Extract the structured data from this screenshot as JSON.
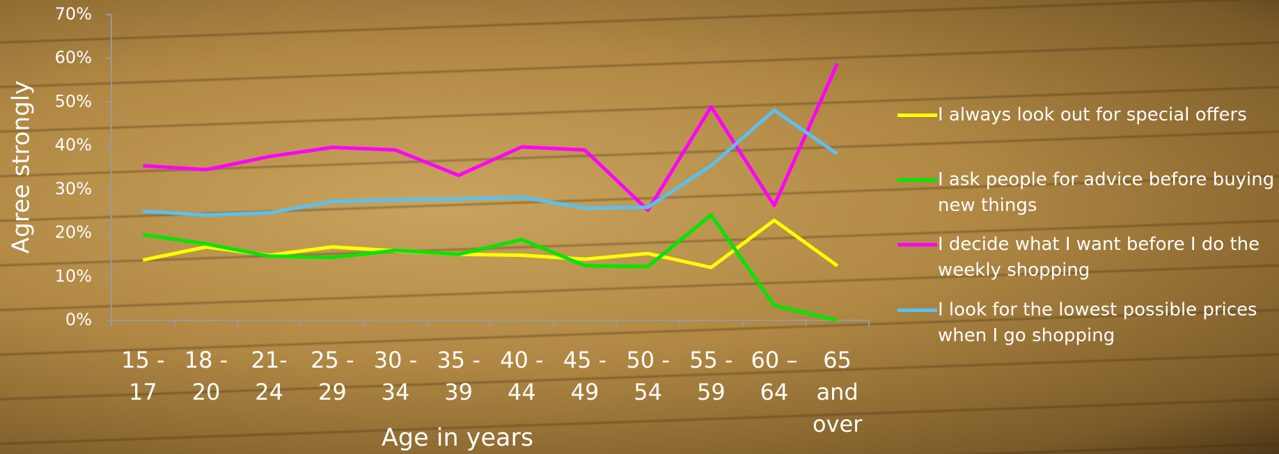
{
  "chart_data": {
    "type": "line",
    "x_label": "Age in years",
    "y_label": "Agree strongly",
    "categories": [
      [
        "15 -",
        "17"
      ],
      [
        "18 -",
        "20"
      ],
      [
        "21-",
        "24"
      ],
      [
        "25 -",
        "29"
      ],
      [
        "30 -",
        "34"
      ],
      [
        "35 -",
        "39"
      ],
      [
        "40 -",
        "44"
      ],
      [
        "45 -",
        "49"
      ],
      [
        "50 -",
        "54"
      ],
      [
        "55 -",
        "59"
      ],
      [
        "60 –",
        "64"
      ],
      [
        "65",
        "and",
        "over"
      ]
    ],
    "ylim": [
      0,
      70
    ],
    "yticks": [
      {
        "value": 0,
        "label": "0%"
      },
      {
        "value": 10,
        "label": "10%"
      },
      {
        "value": 20,
        "label": "20%"
      },
      {
        "value": 30,
        "label": "30%"
      },
      {
        "value": 40,
        "label": "40%"
      },
      {
        "value": 50,
        "label": "50%"
      },
      {
        "value": 60,
        "label": "60%"
      },
      {
        "value": 70,
        "label": "70%"
      }
    ],
    "grid": false,
    "legend": "right",
    "series": [
      {
        "name": "I always look out for special offers",
        "color": "#ffff00",
        "values": [
          13.8,
          16.8,
          14.9,
          16.8,
          15.9,
          15.1,
          14.9,
          14.0,
          15.3,
          12.1,
          22.9,
          12.5
        ]
      },
      {
        "name": "I ask people for advice before buying new things",
        "color": "#00e600",
        "values": [
          19.6,
          17.5,
          14.7,
          14.4,
          16.0,
          15.1,
          18.5,
          12.5,
          12.3,
          24.1,
          3.4,
          0
        ]
      },
      {
        "name": "I decide what I want before I do the weekly shopping",
        "color": "#ff00ff",
        "values": [
          35.4,
          34.5,
          37.5,
          39.6,
          39.0,
          33.2,
          39.7,
          39.0,
          25.2,
          48.9,
          26.3,
          58.8
        ]
      },
      {
        "name": "I look for the lowest possible prices when I go shopping",
        "color": "#5bc0f0",
        "values": [
          25.0,
          24.1,
          24.6,
          27.2,
          27.6,
          27.8,
          28.2,
          25.7,
          25.9,
          35.4,
          48.1,
          38.1
        ]
      }
    ]
  }
}
